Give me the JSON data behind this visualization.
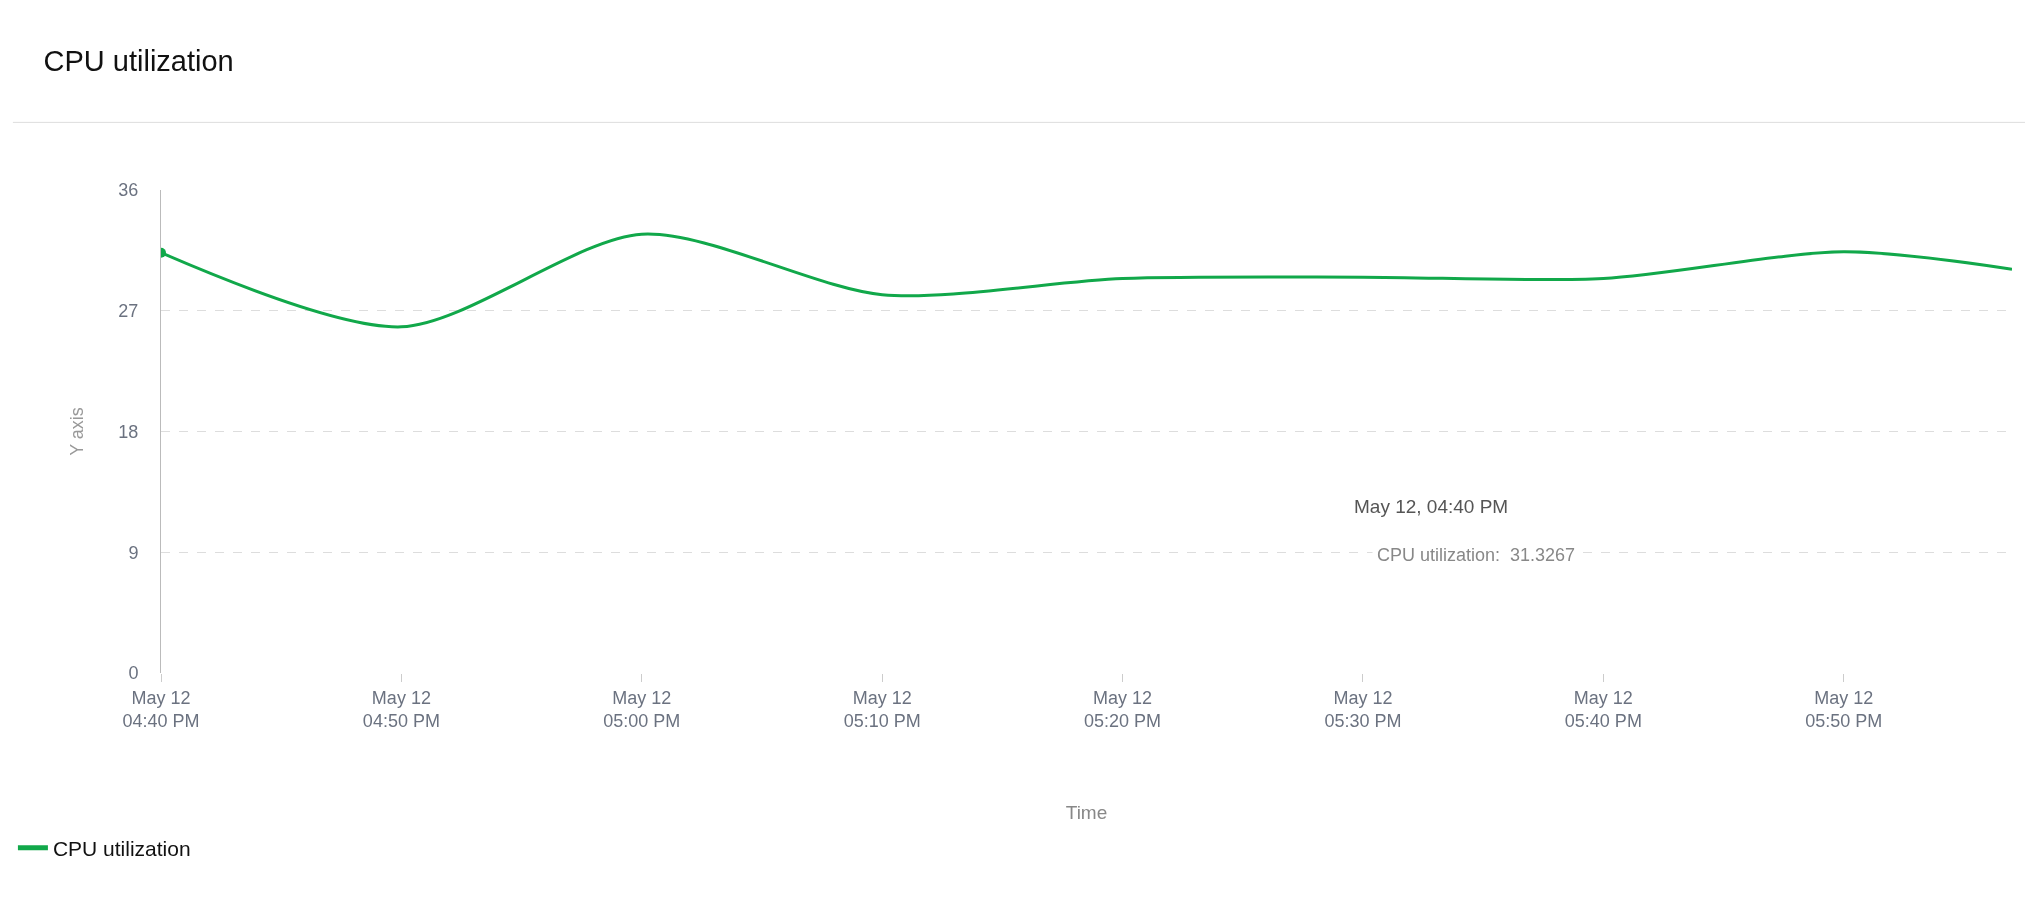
{
  "chart_data": {
    "type": "line",
    "title": "CPU utilization",
    "xlabel": "Time",
    "ylabel": "Y axis",
    "x": [
      "--05-12T16:40",
      "--05-12T16:50",
      "--05-12T17:00",
      "--05-12T17:10",
      "--05-12T17:20",
      "--05-12T17:30",
      "--05-12T17:40",
      "--05-12T17:50",
      "--05-12T17:57"
    ],
    "series": [
      {
        "name": "CPU utilization",
        "color": "#11a84a",
        "values": [
          31.3267,
          25.8,
          32.7,
          28.2,
          29.4,
          29.5,
          29.4,
          31.4,
          30.1
        ]
      }
    ],
    "xlim": [
      "--05-12T16:40",
      "--05-12T17:57"
    ],
    "xticks": [
      {
        "value": "--05-12T16:40",
        "label": "May 12\n04:40 PM"
      },
      {
        "value": "--05-12T16:50",
        "label": "May 12\n04:50 PM"
      },
      {
        "value": "--05-12T17:00",
        "label": "May 12\n05:00 PM"
      },
      {
        "value": "--05-12T17:10",
        "label": "May 12\n05:10 PM"
      },
      {
        "value": "--05-12T17:20",
        "label": "May 12\n05:20 PM"
      },
      {
        "value": "--05-12T17:30",
        "label": "May 12\n05:30 PM"
      },
      {
        "value": "--05-12T17:40",
        "label": "May 12\n05:40 PM"
      },
      {
        "value": "--05-12T17:50",
        "label": "May 12\n05:50 PM"
      }
    ],
    "ylim": [
      0,
      36
    ],
    "yticks": [
      0,
      9,
      18,
      27,
      36
    ],
    "grid": "y",
    "legend": "bottom left",
    "marker": "none",
    "line_style": "solid",
    "annotations": [
      "May 12, 04:40 PM",
      "CPU utilization:  31.3267"
    ]
  }
}
